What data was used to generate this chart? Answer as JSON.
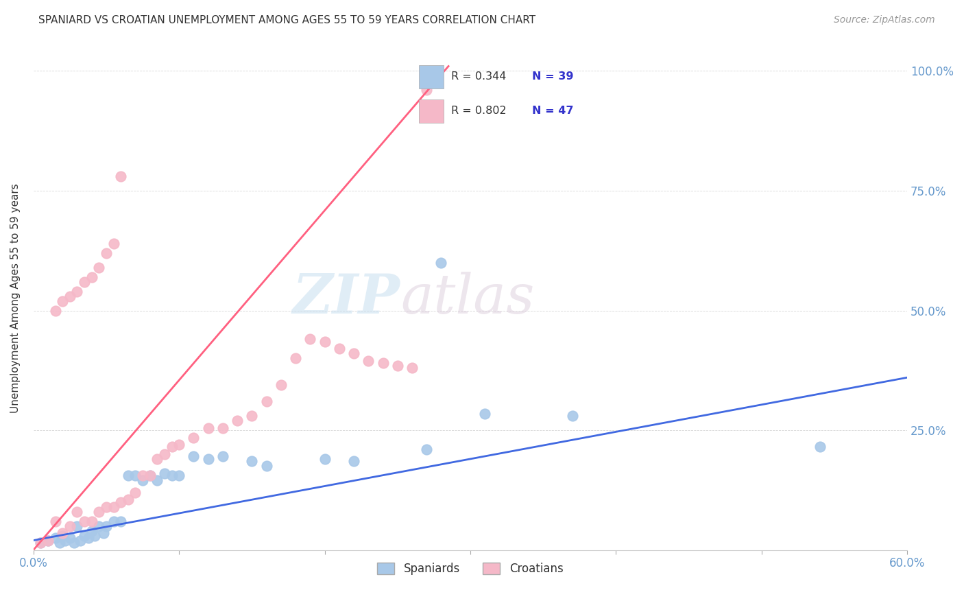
{
  "title": "SPANIARD VS CROATIAN UNEMPLOYMENT AMONG AGES 55 TO 59 YEARS CORRELATION CHART",
  "source": "Source: ZipAtlas.com",
  "ylabel": "Unemployment Among Ages 55 to 59 years",
  "xlim": [
    0.0,
    0.6
  ],
  "ylim": [
    0.0,
    1.05
  ],
  "xticks": [
    0.0,
    0.1,
    0.2,
    0.3,
    0.4,
    0.5,
    0.6
  ],
  "yticks": [
    0.0,
    0.25,
    0.5,
    0.75,
    1.0
  ],
  "ytick_labels": [
    "",
    "25.0%",
    "50.0%",
    "75.0%",
    "100.0%"
  ],
  "watermark_zip": "ZIP",
  "watermark_atlas": "atlas",
  "legend_r_spaniards": "R = 0.344",
  "legend_n_spaniards": "N = 39",
  "legend_r_croatians": "R = 0.802",
  "legend_n_croatians": "N = 47",
  "spaniards_color": "#a8c8e8",
  "croatians_color": "#f5b8c8",
  "spaniards_line_color": "#4169E1",
  "croatians_line_color": "#FF6080",
  "axis_color": "#6699CC",
  "spaniards_x": [
    0.005,
    0.01,
    0.015,
    0.018,
    0.02,
    0.022,
    0.025,
    0.028,
    0.03,
    0.032,
    0.035,
    0.038,
    0.04,
    0.042,
    0.045,
    0.048,
    0.05,
    0.055,
    0.06,
    0.065,
    0.07,
    0.075,
    0.08,
    0.085,
    0.09,
    0.095,
    0.1,
    0.11,
    0.12,
    0.13,
    0.15,
    0.16,
    0.2,
    0.22,
    0.27,
    0.31,
    0.37,
    0.54,
    0.28
  ],
  "spaniards_y": [
    0.015,
    0.02,
    0.025,
    0.015,
    0.03,
    0.02,
    0.025,
    0.015,
    0.05,
    0.02,
    0.03,
    0.025,
    0.04,
    0.03,
    0.05,
    0.035,
    0.05,
    0.06,
    0.06,
    0.155,
    0.155,
    0.145,
    0.155,
    0.145,
    0.16,
    0.155,
    0.155,
    0.195,
    0.19,
    0.195,
    0.185,
    0.175,
    0.19,
    0.185,
    0.21,
    0.285,
    0.28,
    0.215,
    0.6
  ],
  "croatians_x": [
    0.005,
    0.01,
    0.015,
    0.02,
    0.025,
    0.03,
    0.035,
    0.04,
    0.045,
    0.05,
    0.055,
    0.06,
    0.065,
    0.07,
    0.075,
    0.08,
    0.085,
    0.09,
    0.095,
    0.1,
    0.11,
    0.12,
    0.13,
    0.14,
    0.15,
    0.16,
    0.17,
    0.18,
    0.19,
    0.2,
    0.21,
    0.22,
    0.23,
    0.24,
    0.25,
    0.26,
    0.015,
    0.02,
    0.025,
    0.03,
    0.035,
    0.04,
    0.045,
    0.05,
    0.055,
    0.06,
    0.27
  ],
  "croatians_y": [
    0.015,
    0.02,
    0.06,
    0.035,
    0.05,
    0.08,
    0.06,
    0.06,
    0.08,
    0.09,
    0.09,
    0.1,
    0.105,
    0.12,
    0.155,
    0.155,
    0.19,
    0.2,
    0.215,
    0.22,
    0.235,
    0.255,
    0.255,
    0.27,
    0.28,
    0.31,
    0.345,
    0.4,
    0.44,
    0.435,
    0.42,
    0.41,
    0.395,
    0.39,
    0.385,
    0.38,
    0.5,
    0.52,
    0.53,
    0.54,
    0.56,
    0.57,
    0.59,
    0.62,
    0.64,
    0.78,
    0.96
  ],
  "sp_line_x": [
    0.0,
    0.6
  ],
  "sp_line_y": [
    0.02,
    0.36
  ],
  "cr_line_x": [
    0.0,
    0.285
  ],
  "cr_line_y": [
    0.0,
    1.01
  ]
}
